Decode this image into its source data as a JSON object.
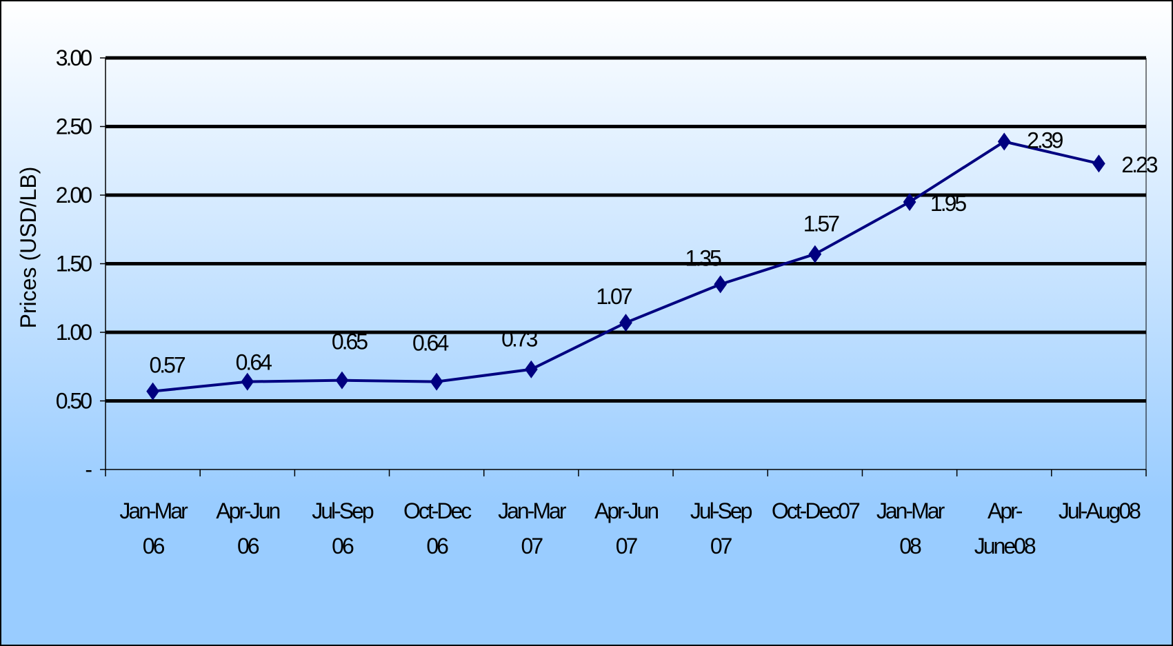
{
  "chart_data": {
    "type": "line",
    "title": "",
    "xlabel": "",
    "ylabel": "Prices (USD/LB)",
    "ylim": [
      0,
      3.0
    ],
    "yticks": [
      0,
      0.5,
      1.0,
      1.5,
      2.0,
      2.5,
      3.0
    ],
    "ytick_labels": [
      "-",
      "0.50",
      "1.00",
      "1.50",
      "2.00",
      "2.50",
      "3.00"
    ],
    "grid": true,
    "legend": "none",
    "categories": [
      [
        "Jan-Mar",
        "06"
      ],
      [
        "Apr-Jun",
        "06"
      ],
      [
        "Jul-Sep",
        "06"
      ],
      [
        "Oct-Dec",
        "06"
      ],
      [
        "Jan-Mar",
        "07"
      ],
      [
        "Apr-Jun",
        "07"
      ],
      [
        "Jul-Sep",
        "07"
      ],
      [
        "Oct-Dec07"
      ],
      [
        "Jan-Mar",
        "08"
      ],
      [
        "Apr-",
        "June08"
      ],
      [
        "Jul-Aug08"
      ]
    ],
    "series": [
      {
        "values": [
          0.57,
          0.64,
          0.65,
          0.64,
          0.73,
          1.07,
          1.35,
          1.57,
          1.95,
          2.39,
          2.23
        ],
        "labels": [
          "0.57",
          "0.64",
          "0.65",
          "0.64",
          "0.73",
          "1.07",
          "1.35",
          "1.57",
          "1.95",
          "2.39",
          "2.23"
        ]
      }
    ],
    "colors": {
      "line": "#000080",
      "marker": "#000080",
      "gridline": "#000000",
      "background_top": "#ffffff",
      "background_bottom": "#99ccff"
    }
  }
}
